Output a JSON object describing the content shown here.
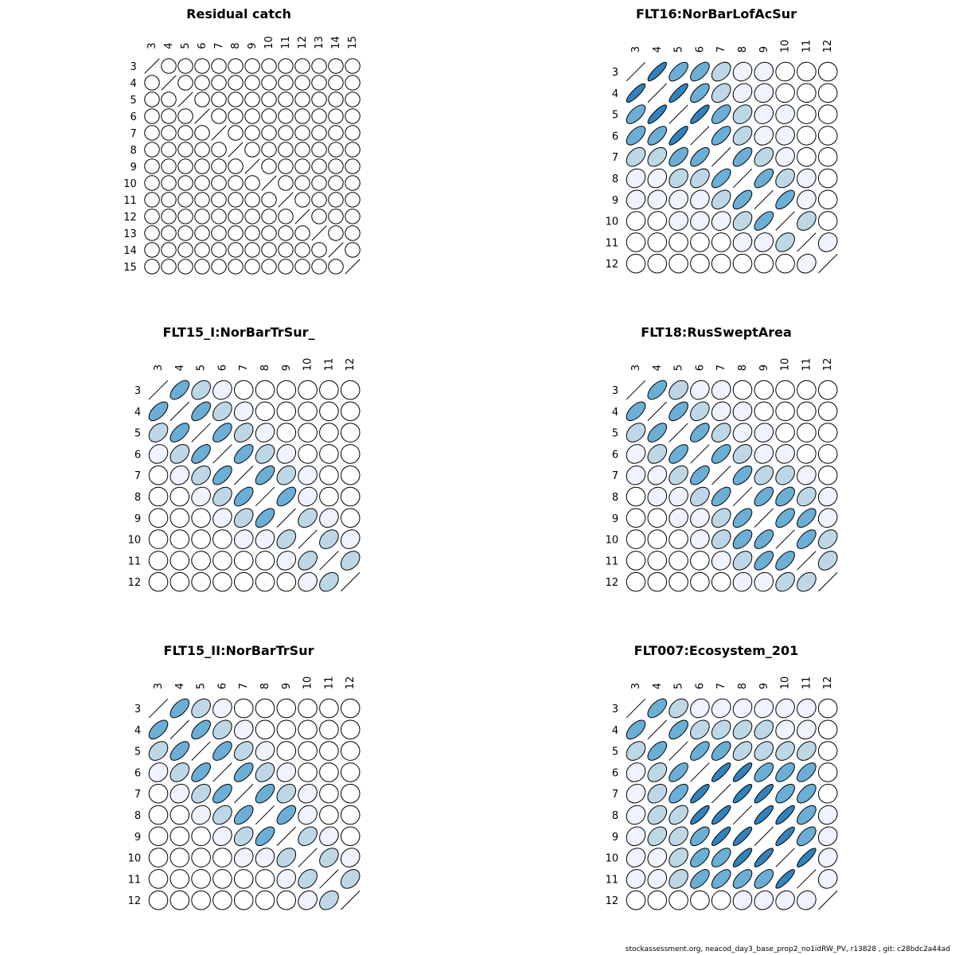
{
  "footer": "stockassessment.org, neacod_day3_base_prop2_no1idRW_PV, r13828 , git: c28bdc2a44ad",
  "colors": {
    "c0": "#ffffff",
    "c1": "#eff3ff",
    "c2": "#bdd7e7",
    "c3": "#6baed6",
    "c4": "#3182bd",
    "stroke": "#000000"
  },
  "chart_data": [
    {
      "type": "correlation-ellipse-matrix",
      "title": "Residual catch",
      "labels": [
        "3",
        "4",
        "5",
        "6",
        "7",
        "8",
        "9",
        "10",
        "11",
        "12",
        "13",
        "14",
        "15"
      ],
      "matrix": [
        [
          1,
          0,
          0,
          0,
          0,
          0,
          0,
          0,
          0,
          0,
          0,
          0,
          0
        ],
        [
          0,
          1,
          0,
          0,
          0,
          0,
          0,
          0,
          0,
          0,
          0,
          0,
          0
        ],
        [
          0,
          0,
          1,
          0,
          0,
          0,
          0,
          0,
          0,
          0,
          0,
          0,
          0
        ],
        [
          0,
          0,
          0,
          1,
          0,
          0,
          0,
          0,
          0,
          0,
          0,
          0,
          0
        ],
        [
          0,
          0,
          0,
          0,
          1,
          0,
          0,
          0,
          0,
          0,
          0,
          0,
          0
        ],
        [
          0,
          0,
          0,
          0,
          0,
          1,
          0,
          0,
          0,
          0,
          0,
          0,
          0
        ],
        [
          0,
          0,
          0,
          0,
          0,
          0,
          1,
          0,
          0,
          0,
          0,
          0,
          0
        ],
        [
          0,
          0,
          0,
          0,
          0,
          0,
          0,
          1,
          0,
          0,
          0,
          0,
          0
        ],
        [
          0,
          0,
          0,
          0,
          0,
          0,
          0,
          0,
          1,
          0,
          0,
          0,
          0
        ],
        [
          0,
          0,
          0,
          0,
          0,
          0,
          0,
          0,
          0,
          1,
          0,
          0,
          0
        ],
        [
          0,
          0,
          0,
          0,
          0,
          0,
          0,
          0,
          0,
          0,
          1,
          0,
          0
        ],
        [
          0,
          0,
          0,
          0,
          0,
          0,
          0,
          0,
          0,
          0,
          0,
          1,
          0
        ],
        [
          0,
          0,
          0,
          0,
          0,
          0,
          0,
          0,
          0,
          0,
          0,
          0,
          1
        ]
      ]
    },
    {
      "type": "correlation-ellipse-matrix",
      "title": "FLT16:NorBarLofAcSur",
      "labels": [
        "3",
        "4",
        "5",
        "6",
        "7",
        "8",
        "9",
        "10",
        "11",
        "12"
      ],
      "matrix": [
        [
          1,
          0.85,
          0.65,
          0.6,
          0.4,
          0.15,
          0.1,
          0.05,
          0,
          0
        ],
        [
          0.85,
          1,
          0.85,
          0.65,
          0.4,
          0.2,
          0.1,
          0.05,
          0,
          0
        ],
        [
          0.65,
          0.85,
          1,
          0.85,
          0.6,
          0.3,
          0.15,
          0.1,
          0,
          0
        ],
        [
          0.6,
          0.65,
          0.85,
          1,
          0.65,
          0.4,
          0.15,
          0.1,
          0,
          0
        ],
        [
          0.4,
          0.4,
          0.6,
          0.65,
          1,
          0.65,
          0.4,
          0.15,
          0,
          0
        ],
        [
          0.15,
          0.2,
          0.3,
          0.4,
          0.65,
          1,
          0.65,
          0.35,
          0.1,
          0
        ],
        [
          0.1,
          0.1,
          0.15,
          0.15,
          0.4,
          0.65,
          1,
          0.65,
          0.15,
          0
        ],
        [
          0.05,
          0.05,
          0.1,
          0.1,
          0.15,
          0.35,
          0.65,
          1,
          0.35,
          0
        ],
        [
          0,
          0,
          0,
          0,
          0,
          0.1,
          0.15,
          0.35,
          1,
          0.15
        ],
        [
          0,
          0,
          0,
          0,
          0,
          0,
          0,
          0,
          0.15,
          1
        ]
      ]
    },
    {
      "type": "correlation-ellipse-matrix",
      "title": "FLT15_I:NorBarTrSur_",
      "labels": [
        "3",
        "4",
        "5",
        "6",
        "7",
        "8",
        "9",
        "10",
        "11",
        "12"
      ],
      "matrix": [
        [
          1,
          0.6,
          0.35,
          0.15,
          0,
          0,
          0,
          0,
          0,
          0
        ],
        [
          0.6,
          1,
          0.6,
          0.35,
          0.15,
          0,
          0,
          0,
          0,
          0
        ],
        [
          0.35,
          0.6,
          1,
          0.6,
          0.35,
          0.15,
          0,
          0,
          0,
          0
        ],
        [
          0.15,
          0.35,
          0.6,
          1,
          0.6,
          0.35,
          0.15,
          0,
          0,
          0
        ],
        [
          0,
          0.15,
          0.35,
          0.6,
          1,
          0.6,
          0.3,
          0.1,
          0,
          0
        ],
        [
          0,
          0,
          0.15,
          0.35,
          0.6,
          1,
          0.6,
          0.15,
          0,
          0
        ],
        [
          0,
          0,
          0,
          0.15,
          0.35,
          0.6,
          1,
          0.35,
          0.15,
          0
        ],
        [
          0,
          0,
          0,
          0,
          0.1,
          0.15,
          0.35,
          1,
          0.35,
          0.15
        ],
        [
          0,
          0,
          0,
          0,
          0,
          0,
          0.15,
          0.35,
          1,
          0.35
        ],
        [
          0,
          0,
          0,
          0,
          0,
          0,
          0,
          0.15,
          0.35,
          1
        ]
      ]
    },
    {
      "type": "correlation-ellipse-matrix",
      "title": "FLT18:RusSweptArea",
      "labels": [
        "3",
        "4",
        "5",
        "6",
        "7",
        "8",
        "9",
        "10",
        "11",
        "12"
      ],
      "matrix": [
        [
          1,
          0.6,
          0.35,
          0.15,
          0.1,
          0,
          0,
          0,
          0,
          0
        ],
        [
          0.6,
          1,
          0.6,
          0.35,
          0.15,
          0.1,
          0,
          0,
          0,
          0
        ],
        [
          0.35,
          0.6,
          1,
          0.6,
          0.35,
          0.15,
          0.1,
          0.05,
          0,
          0
        ],
        [
          0.15,
          0.35,
          0.6,
          1,
          0.6,
          0.35,
          0.15,
          0.1,
          0.05,
          0
        ],
        [
          0.1,
          0.15,
          0.35,
          0.6,
          1,
          0.6,
          0.35,
          0.3,
          0.1,
          0
        ],
        [
          0,
          0.1,
          0.15,
          0.35,
          0.6,
          1,
          0.6,
          0.55,
          0.35,
          0.1
        ],
        [
          0,
          0,
          0.1,
          0.15,
          0.35,
          0.6,
          1,
          0.6,
          0.6,
          0.1
        ],
        [
          0,
          0,
          0.05,
          0.1,
          0.3,
          0.55,
          0.6,
          1,
          0.6,
          0.35
        ],
        [
          0,
          0,
          0,
          0.05,
          0.1,
          0.35,
          0.6,
          0.6,
          1,
          0.35
        ],
        [
          0,
          0,
          0,
          0,
          0,
          0.1,
          0.1,
          0.35,
          0.35,
          1
        ]
      ]
    },
    {
      "type": "correlation-ellipse-matrix",
      "title": "FLT15_II:NorBarTrSur",
      "labels": [
        "3",
        "4",
        "5",
        "6",
        "7",
        "8",
        "9",
        "10",
        "11",
        "12"
      ],
      "matrix": [
        [
          1,
          0.6,
          0.35,
          0.15,
          0,
          0,
          0,
          0,
          0,
          0
        ],
        [
          0.6,
          1,
          0.6,
          0.35,
          0.15,
          0,
          0,
          0,
          0,
          0
        ],
        [
          0.35,
          0.6,
          1,
          0.6,
          0.35,
          0.15,
          0,
          0,
          0,
          0
        ],
        [
          0.15,
          0.35,
          0.6,
          1,
          0.6,
          0.35,
          0.15,
          0,
          0,
          0
        ],
        [
          0,
          0.15,
          0.35,
          0.6,
          1,
          0.6,
          0.35,
          0.15,
          0,
          0
        ],
        [
          0,
          0,
          0.15,
          0.35,
          0.6,
          1,
          0.6,
          0.15,
          0,
          0
        ],
        [
          0,
          0,
          0,
          0.15,
          0.35,
          0.6,
          1,
          0.35,
          0.15,
          0
        ],
        [
          0,
          0,
          0,
          0,
          0.15,
          0.15,
          0.35,
          1,
          0.35,
          0.15
        ],
        [
          0,
          0,
          0,
          0,
          0,
          0,
          0.15,
          0.35,
          1,
          0.35
        ],
        [
          0,
          0,
          0,
          0,
          0,
          0,
          0,
          0.15,
          0.35,
          1
        ]
      ]
    },
    {
      "type": "correlation-ellipse-matrix",
      "title": "FLT007:Ecosystem_201",
      "labels": [
        "3",
        "4",
        "5",
        "6",
        "7",
        "8",
        "9",
        "10",
        "11",
        "12"
      ],
      "matrix": [
        [
          1,
          0.6,
          0.35,
          0.15,
          0.15,
          0.15,
          0.15,
          0.15,
          0.1,
          0
        ],
        [
          0.6,
          1,
          0.6,
          0.35,
          0.35,
          0.35,
          0.35,
          0.15,
          0.15,
          0
        ],
        [
          0.35,
          0.6,
          1,
          0.65,
          0.6,
          0.45,
          0.35,
          0.35,
          0.35,
          0
        ],
        [
          0.15,
          0.35,
          0.65,
          1,
          0.85,
          0.85,
          0.6,
          0.6,
          0.6,
          0
        ],
        [
          0.15,
          0.35,
          0.6,
          0.85,
          1,
          0.85,
          0.85,
          0.6,
          0.6,
          0.05
        ],
        [
          0.15,
          0.35,
          0.45,
          0.85,
          0.85,
          1,
          0.85,
          0.85,
          0.6,
          0.1
        ],
        [
          0.15,
          0.35,
          0.35,
          0.6,
          0.85,
          0.85,
          1,
          0.85,
          0.6,
          0.15
        ],
        [
          0.15,
          0.15,
          0.35,
          0.6,
          0.6,
          0.85,
          0.85,
          1,
          0.85,
          0.15
        ],
        [
          0.1,
          0.15,
          0.35,
          0.6,
          0.6,
          0.6,
          0.6,
          0.85,
          1,
          0.1
        ],
        [
          0,
          0,
          0,
          0,
          0.05,
          0.1,
          0.15,
          0.15,
          0.1,
          1
        ]
      ]
    }
  ]
}
